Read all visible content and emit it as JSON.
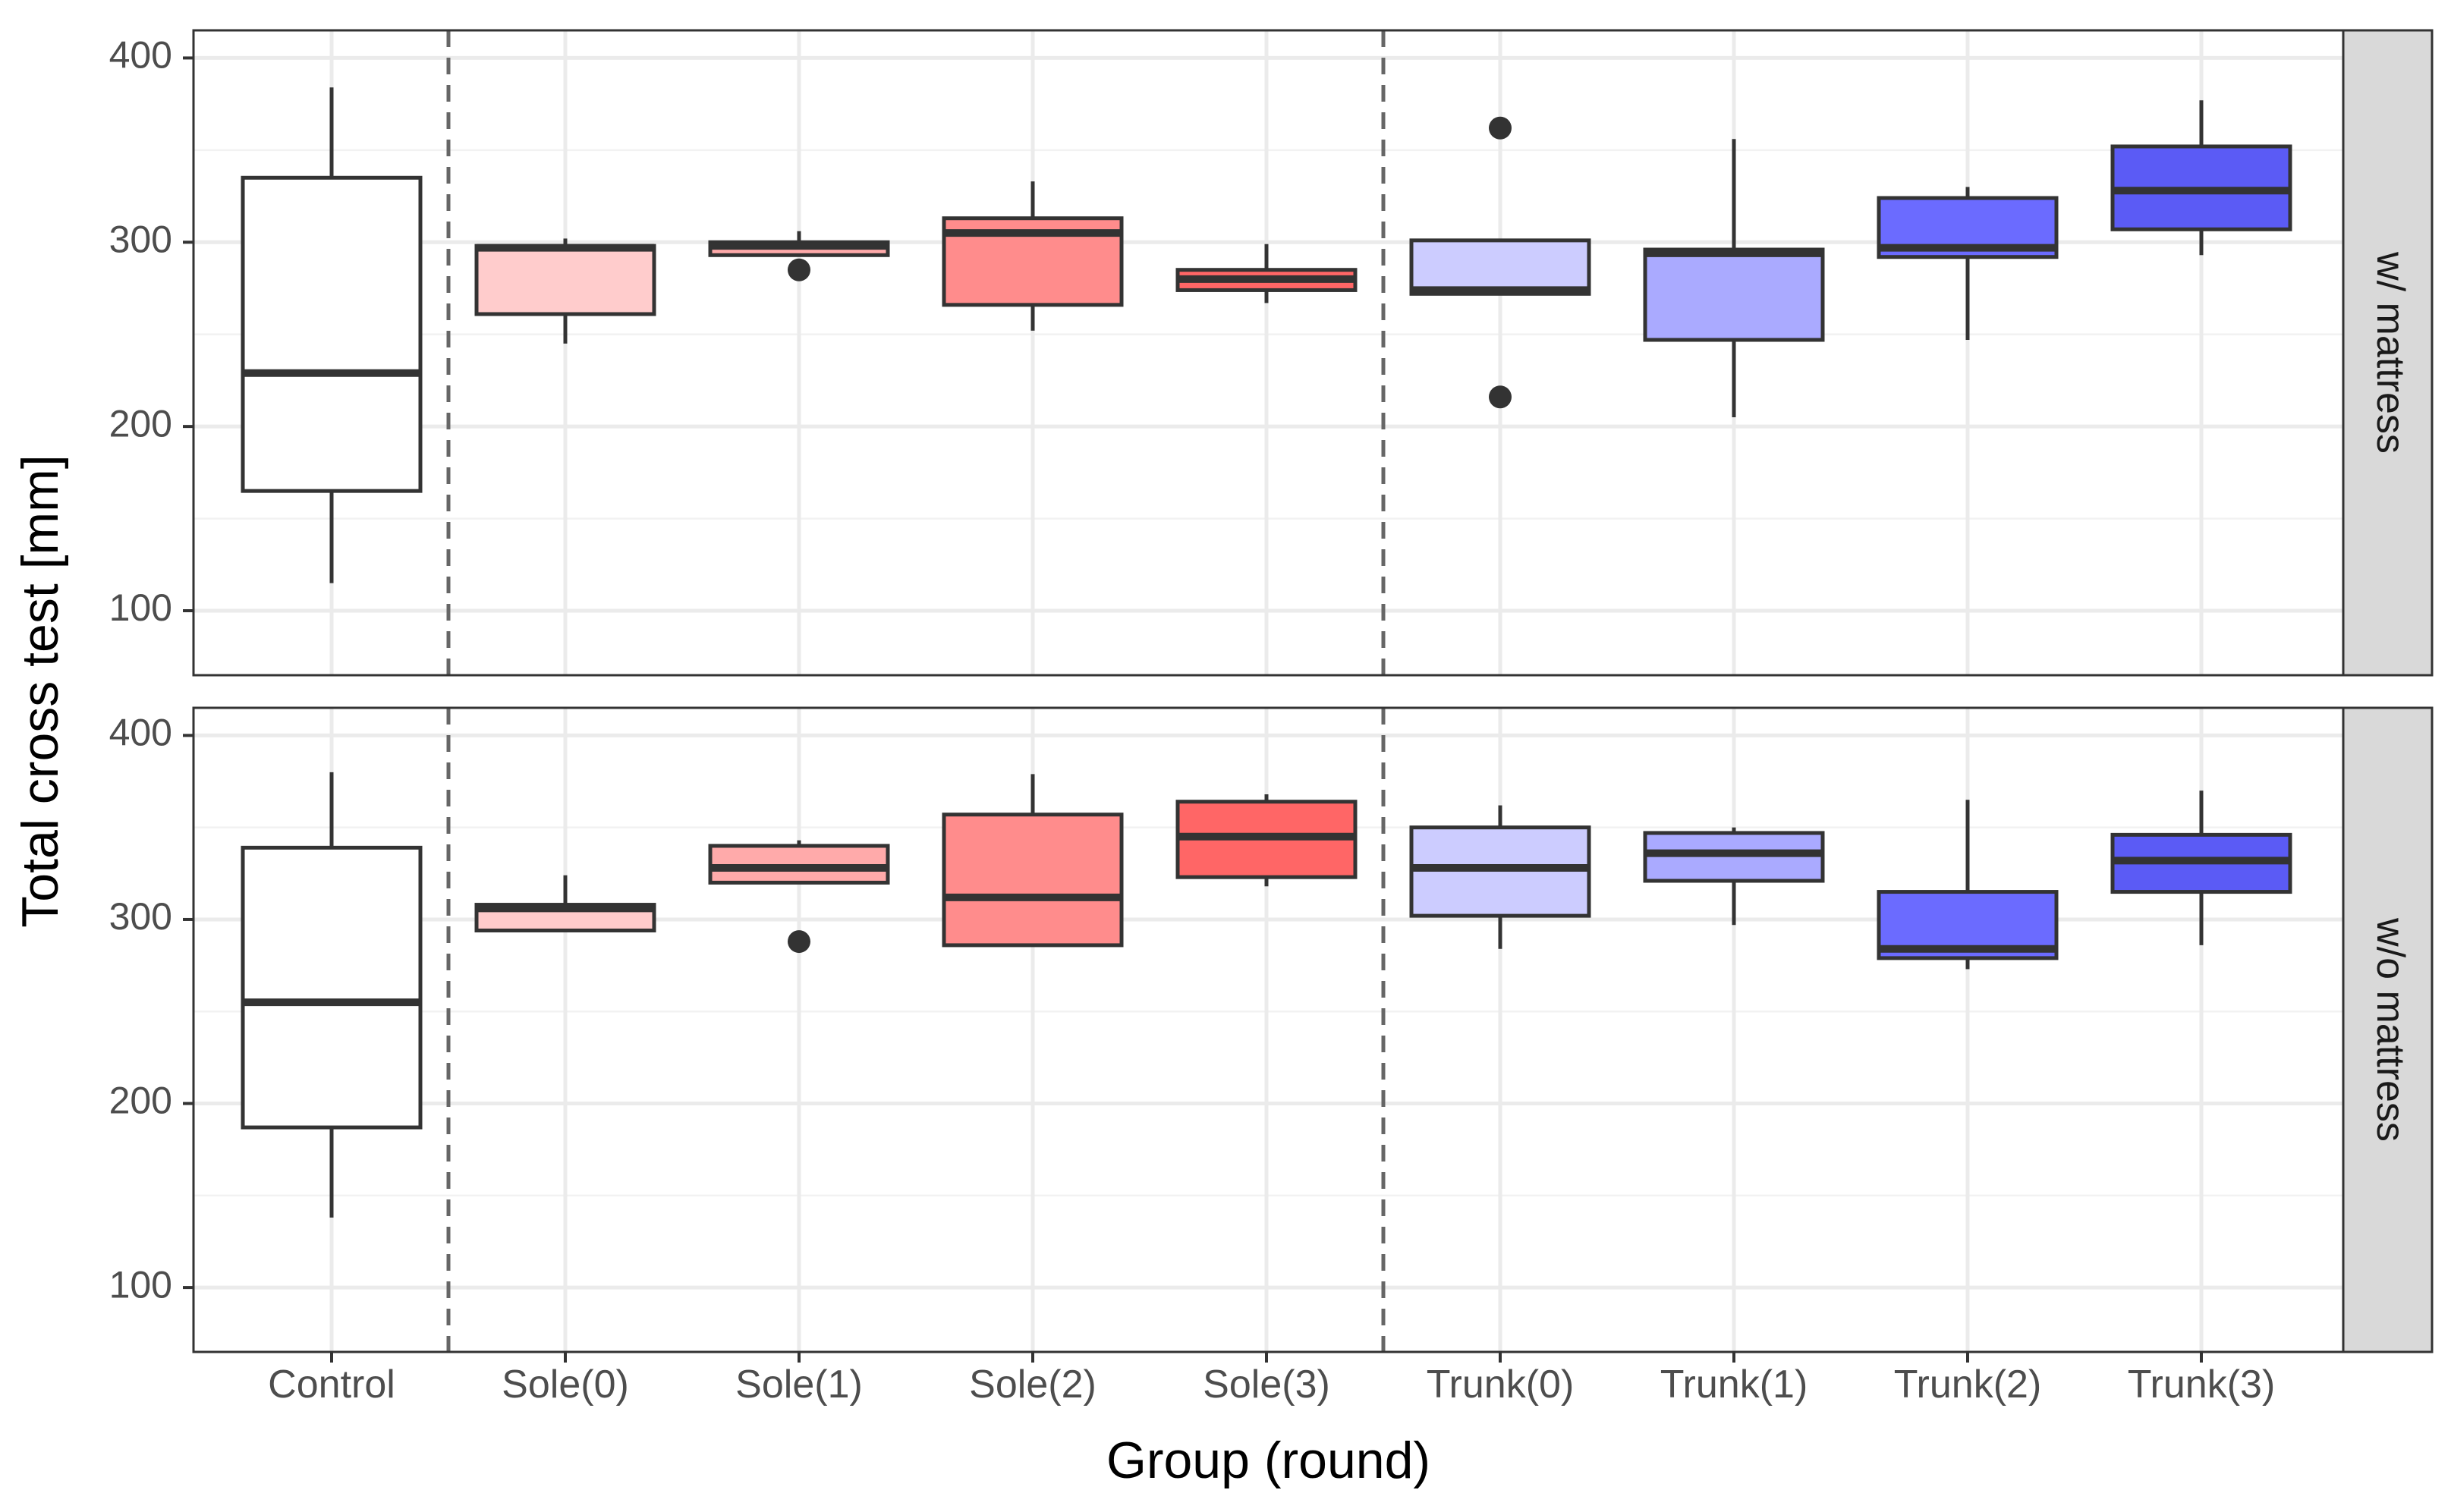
{
  "chart_data": {
    "type": "boxplot",
    "ylabel": "Total cross test [mm]",
    "xlabel": "Group (round)",
    "categories": [
      "Control",
      "Sole(0)",
      "Sole(1)",
      "Sole(2)",
      "Sole(3)",
      "Trunk(0)",
      "Trunk(1)",
      "Trunk(2)",
      "Trunk(3)"
    ],
    "ylim": [
      65,
      415
    ],
    "y_ticks": [
      100,
      200,
      300,
      400
    ],
    "y_tick_labels": [
      "100",
      "200",
      "300",
      "400"
    ],
    "grid": true,
    "group_dividers": [
      "Control|Sole(0)",
      "Sole(3)|Trunk(0)"
    ],
    "colors": {
      "Control": "#ffffff",
      "Sole(0)": "#ffcccc",
      "Sole(1)": "#ffaaaa",
      "Sole(2)": "#ff8c8c",
      "Sole(3)": "#ff6666",
      "Trunk(0)": "#ccccff",
      "Trunk(1)": "#aaaaff",
      "Trunk(2)": "#6b6bff",
      "Trunk(3)": "#5b5bf5",
      "box_stroke": "#333333",
      "grid": "#ebebeb",
      "divider": "#666666",
      "strip_bg": "#d9d9d9"
    },
    "panels": [
      {
        "strip_label": "w/ mattress",
        "boxes": [
          {
            "group": "Control",
            "whisker_low": 115,
            "q1": 165,
            "median": 229,
            "q3": 335,
            "whisker_high": 384,
            "outliers": []
          },
          {
            "group": "Sole(0)",
            "whisker_low": 245,
            "q1": 261,
            "median": 297,
            "q3": 298,
            "whisker_high": 302,
            "outliers": []
          },
          {
            "group": "Sole(1)",
            "whisker_low": 293,
            "q1": 293,
            "median": 298,
            "q3": 300,
            "whisker_high": 306,
            "outliers": [
              285
            ]
          },
          {
            "group": "Sole(2)",
            "whisker_low": 252,
            "q1": 266,
            "median": 305,
            "q3": 313,
            "whisker_high": 333,
            "outliers": []
          },
          {
            "group": "Sole(3)",
            "whisker_low": 267,
            "q1": 274,
            "median": 280,
            "q3": 285,
            "whisker_high": 299,
            "outliers": []
          },
          {
            "group": "Trunk(0)",
            "whisker_low": 272,
            "q1": 272,
            "median": 274,
            "q3": 301,
            "whisker_high": 301,
            "outliers": [
              362,
              216
            ]
          },
          {
            "group": "Trunk(1)",
            "whisker_low": 205,
            "q1": 247,
            "median": 294,
            "q3": 296,
            "whisker_high": 356,
            "outliers": []
          },
          {
            "group": "Trunk(2)",
            "whisker_low": 247,
            "q1": 292,
            "median": 297,
            "q3": 324,
            "whisker_high": 330,
            "outliers": []
          },
          {
            "group": "Trunk(3)",
            "whisker_low": 293,
            "q1": 307,
            "median": 328,
            "q3": 352,
            "whisker_high": 377,
            "outliers": []
          }
        ]
      },
      {
        "strip_label": "w/o mattress",
        "boxes": [
          {
            "group": "Control",
            "whisker_low": 138,
            "q1": 187,
            "median": 255,
            "q3": 339,
            "whisker_high": 380,
            "outliers": []
          },
          {
            "group": "Sole(0)",
            "whisker_low": 294,
            "q1": 294,
            "median": 306,
            "q3": 308,
            "whisker_high": 324,
            "outliers": []
          },
          {
            "group": "Sole(1)",
            "whisker_low": 320,
            "q1": 320,
            "median": 328,
            "q3": 340,
            "whisker_high": 343,
            "outliers": [
              288
            ]
          },
          {
            "group": "Sole(2)",
            "whisker_low": 286,
            "q1": 286,
            "median": 312,
            "q3": 357,
            "whisker_high": 379,
            "outliers": []
          },
          {
            "group": "Sole(3)",
            "whisker_low": 318,
            "q1": 323,
            "median": 345,
            "q3": 364,
            "whisker_high": 368,
            "outliers": []
          },
          {
            "group": "Trunk(0)",
            "whisker_low": 284,
            "q1": 302,
            "median": 328,
            "q3": 350,
            "whisker_high": 362,
            "outliers": []
          },
          {
            "group": "Trunk(1)",
            "whisker_low": 297,
            "q1": 321,
            "median": 336,
            "q3": 347,
            "whisker_high": 350,
            "outliers": []
          },
          {
            "group": "Trunk(2)",
            "whisker_low": 273,
            "q1": 279,
            "median": 284,
            "q3": 315,
            "whisker_high": 365,
            "outliers": []
          },
          {
            "group": "Trunk(3)",
            "whisker_low": 286,
            "q1": 315,
            "median": 332,
            "q3": 346,
            "whisker_high": 370,
            "outliers": []
          }
        ]
      }
    ]
  }
}
